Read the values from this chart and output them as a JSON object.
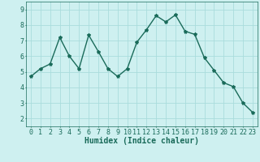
{
  "x": [
    0,
    1,
    2,
    3,
    4,
    5,
    6,
    7,
    8,
    9,
    10,
    11,
    12,
    13,
    14,
    15,
    16,
    17,
    18,
    19,
    20,
    21,
    22,
    23
  ],
  "y": [
    4.7,
    5.2,
    5.5,
    7.2,
    6.0,
    5.2,
    7.35,
    6.3,
    5.2,
    4.7,
    5.2,
    6.9,
    7.7,
    8.6,
    8.2,
    8.65,
    7.6,
    7.4,
    5.9,
    5.1,
    4.3,
    4.05,
    3.0,
    2.4
  ],
  "line_color": "#1a6b5a",
  "marker": "*",
  "marker_size": 3,
  "bg_color": "#cef0f0",
  "grid_color": "#aadcdc",
  "xlabel": "Humidex (Indice chaleur)",
  "xlabel_fontsize": 7,
  "xlabel_color": "#1a6b5a",
  "ylabel_ticks": [
    2,
    3,
    4,
    5,
    6,
    7,
    8,
    9
  ],
  "xlim": [
    -0.5,
    23.5
  ],
  "ylim": [
    1.5,
    9.5
  ],
  "tick_color": "#1a6b5a",
  "tick_fontsize": 6,
  "line_width": 1.0
}
